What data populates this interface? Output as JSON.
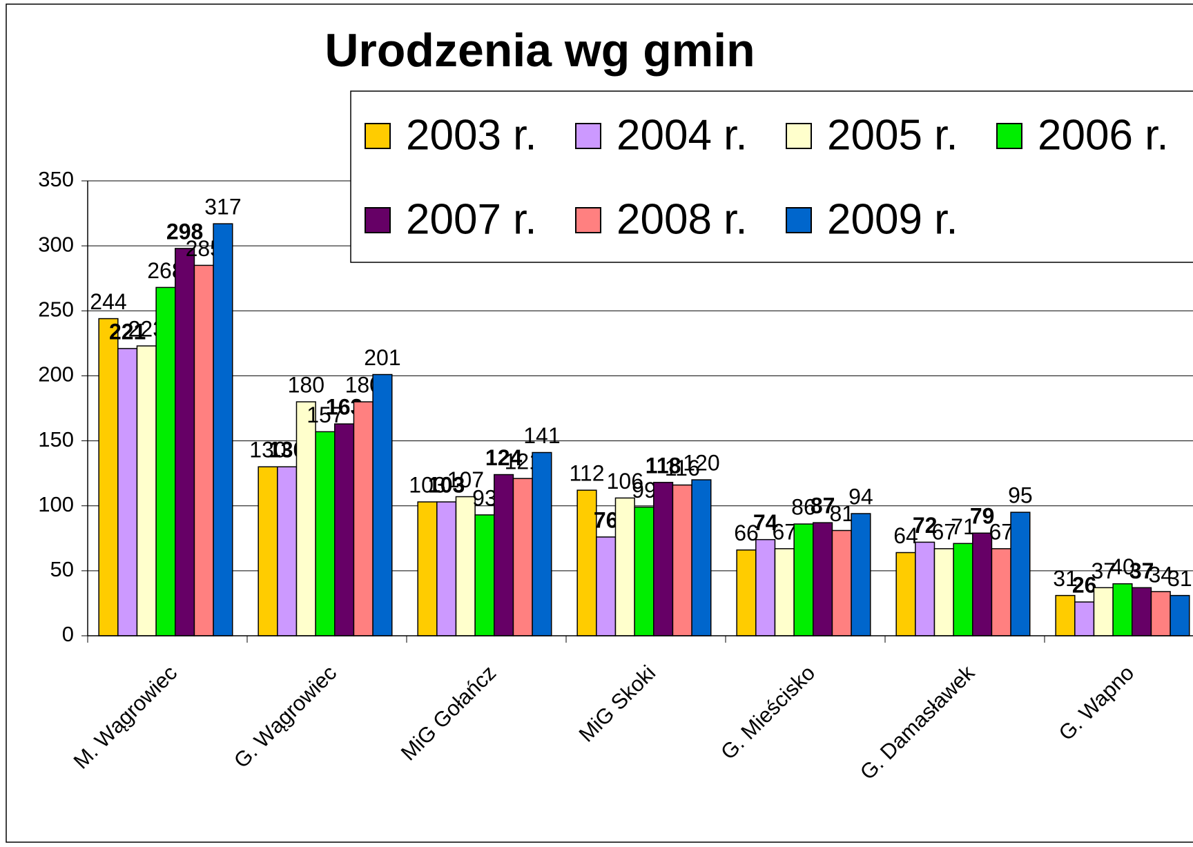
{
  "chart_data": {
    "type": "bar",
    "title": "Urodzenia wg gmin",
    "categories": [
      "M. Wągrowiec",
      "G. Wągrowiec",
      "MiG Gołańcz",
      "MiG Skoki",
      "G. Mieścisko",
      "G. Damasławek",
      "G. Wapno"
    ],
    "series": [
      {
        "name": "2003 r.",
        "color": "#FFCC00",
        "label_color": "#000000",
        "label_bold": false,
        "values": [
          244,
          130,
          103,
          112,
          66,
          64,
          31
        ]
      },
      {
        "name": "2004 r.",
        "color": "#CC99FF",
        "label_color": "#0000FF",
        "label_bold": true,
        "values": [
          221,
          130,
          103,
          76,
          74,
          72,
          26
        ]
      },
      {
        "name": "2005 r.",
        "color": "#FFFFCC",
        "label_color": "#FF0000",
        "label_bold": false,
        "values": [
          223,
          180,
          107,
          106,
          67,
          67,
          37
        ]
      },
      {
        "name": "2006 r.",
        "color": "#00EE00",
        "label_color": "#000000",
        "label_bold": false,
        "values": [
          268,
          157,
          93,
          99,
          86,
          71,
          40
        ]
      },
      {
        "name": "2007 r.",
        "color": "#660066",
        "label_color": "#660066",
        "label_bold": true,
        "values": [
          298,
          163,
          124,
          118,
          87,
          79,
          37
        ]
      },
      {
        "name": "2008 r.",
        "color": "#FF8080",
        "label_color": "#FF0000",
        "label_bold": false,
        "values": [
          285,
          180,
          121,
          116,
          81,
          67,
          34
        ]
      },
      {
        "name": "2009 r.",
        "color": "#0066CC",
        "label_color": "#000000",
        "label_bold": false,
        "values": [
          317,
          201,
          141,
          120,
          94,
          95,
          31
        ]
      }
    ],
    "ylim": [
      0,
      350
    ],
    "yticks": [
      0,
      50,
      100,
      150,
      200,
      250,
      300,
      350
    ],
    "grid": true,
    "legend": "top-right"
  }
}
